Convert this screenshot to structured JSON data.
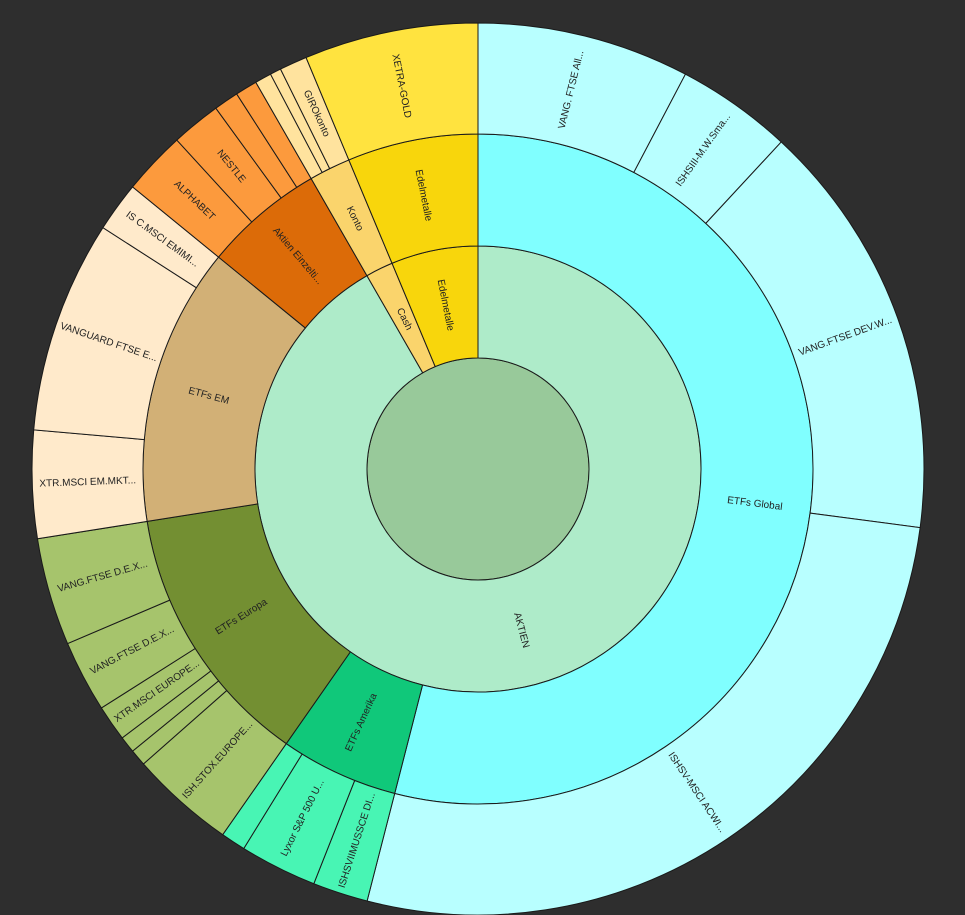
{
  "chart_data": {
    "type": "sunburst",
    "title": "",
    "levels": 4,
    "root": {
      "label": "",
      "value": 100,
      "color": "#98c99a",
      "children": [
        {
          "label": "AKTIEN",
          "value": 91.7,
          "color": "#aeebc9",
          "children": [
            {
              "label": "ETFs Global",
              "value": 54.0,
              "color": "#80ffff",
              "children": [
                {
                  "label": "VANG. FTSE All...",
                  "value": 7.7,
                  "color": "#b8ffff"
                },
                {
                  "label": "ISHSIII-M.W.Sma...",
                  "value": 4.2,
                  "color": "#b8ffff"
                },
                {
                  "label": "VANG.FTSE DEV.W...",
                  "value": 15.2,
                  "color": "#b8ffff"
                },
                {
                  "label": "ISHSV-MSCI ACWI...",
                  "value": 26.9,
                  "color": "#b8ffff"
                }
              ]
            },
            {
              "label": "ETFs Amerika",
              "value": 5.7,
              "color": "#10c87a",
              "children": [
                {
                  "label": "ISHSVIIMUSSCE DI...",
                  "value": 2.0,
                  "color": "#48f5b4"
                },
                {
                  "label": "Lyxor S&P 500 U...",
                  "value": 2.8,
                  "color": "#48f5b4"
                },
                {
                  "label": "",
                  "value": 0.9,
                  "color": "#48f5b4"
                }
              ]
            },
            {
              "label": "ETFs Europa",
              "value": 12.8,
              "color": "#738f32",
              "children": [
                {
                  "label": "ISH.STOX.EUROPE...",
                  "value": 3.8,
                  "color": "#a6c46c"
                },
                {
                  "label": "",
                  "value": 0.6,
                  "color": "#a6c46c"
                },
                {
                  "label": "",
                  "value": 0.6,
                  "color": "#a6c46c"
                },
                {
                  "label": "XTR.MSCI EUROPE...",
                  "value": 1.3,
                  "color": "#a6c46c"
                },
                {
                  "label": "VANG.FTSE D.E.X...",
                  "value": 2.6,
                  "color": "#a6c46c"
                },
                {
                  "label": "VANG.FTSE D.E.X...",
                  "value": 3.9,
                  "color": "#a6c46c"
                }
              ]
            },
            {
              "label": "ETFs EM",
              "value": 13.4,
              "color": "#d2b076",
              "children": [
                {
                  "label": "XTR.MSCI EM.MKT...",
                  "value": 3.9,
                  "color": "#ffeacb"
                },
                {
                  "label": "VANGUARD FTSE E...",
                  "value": 7.7,
                  "color": "#ffeacb"
                },
                {
                  "label": "IS C.MSCI EMIMI...",
                  "value": 1.8,
                  "color": "#ffeacb"
                }
              ]
            },
            {
              "label": "Aktien Einzelti...",
              "value": 5.8,
              "color": "#dc6b08",
              "children": [
                {
                  "label": "ALPHABET",
                  "value": 2.3,
                  "color": "#fc9a3d"
                },
                {
                  "label": "NESTLE",
                  "value": 1.8,
                  "color": "#fc9a3d"
                },
                {
                  "label": "",
                  "value": 0.9,
                  "color": "#fc9a3d"
                },
                {
                  "label": "",
                  "value": 0.8,
                  "color": "#fc9a3d"
                }
              ]
            }
          ]
        },
        {
          "label": "Cash",
          "value": 2.0,
          "color": "#fad46c",
          "children": [
            {
              "label": "Konto",
              "value": 2.0,
              "color": "#fad46c",
              "children": [
                {
                  "label": "",
                  "value": 0.6,
                  "color": "#ffe39e"
                },
                {
                  "label": "",
                  "value": 0.4,
                  "color": "#ffe39e"
                },
                {
                  "label": "GIROkonto",
                  "value": 1.0,
                  "color": "#ffe39e"
                }
              ]
            }
          ]
        },
        {
          "label": "Edelmetalle",
          "value": 6.3,
          "color": "#f8d60c",
          "children": [
            {
              "label": "Edelmetalle",
              "value": 6.3,
              "color": "#f8d60c",
              "children": [
                {
                  "label": "XETRA-GOLD",
                  "value": 6.3,
                  "color": "#ffe33f"
                }
              ]
            }
          ]
        }
      ]
    }
  }
}
